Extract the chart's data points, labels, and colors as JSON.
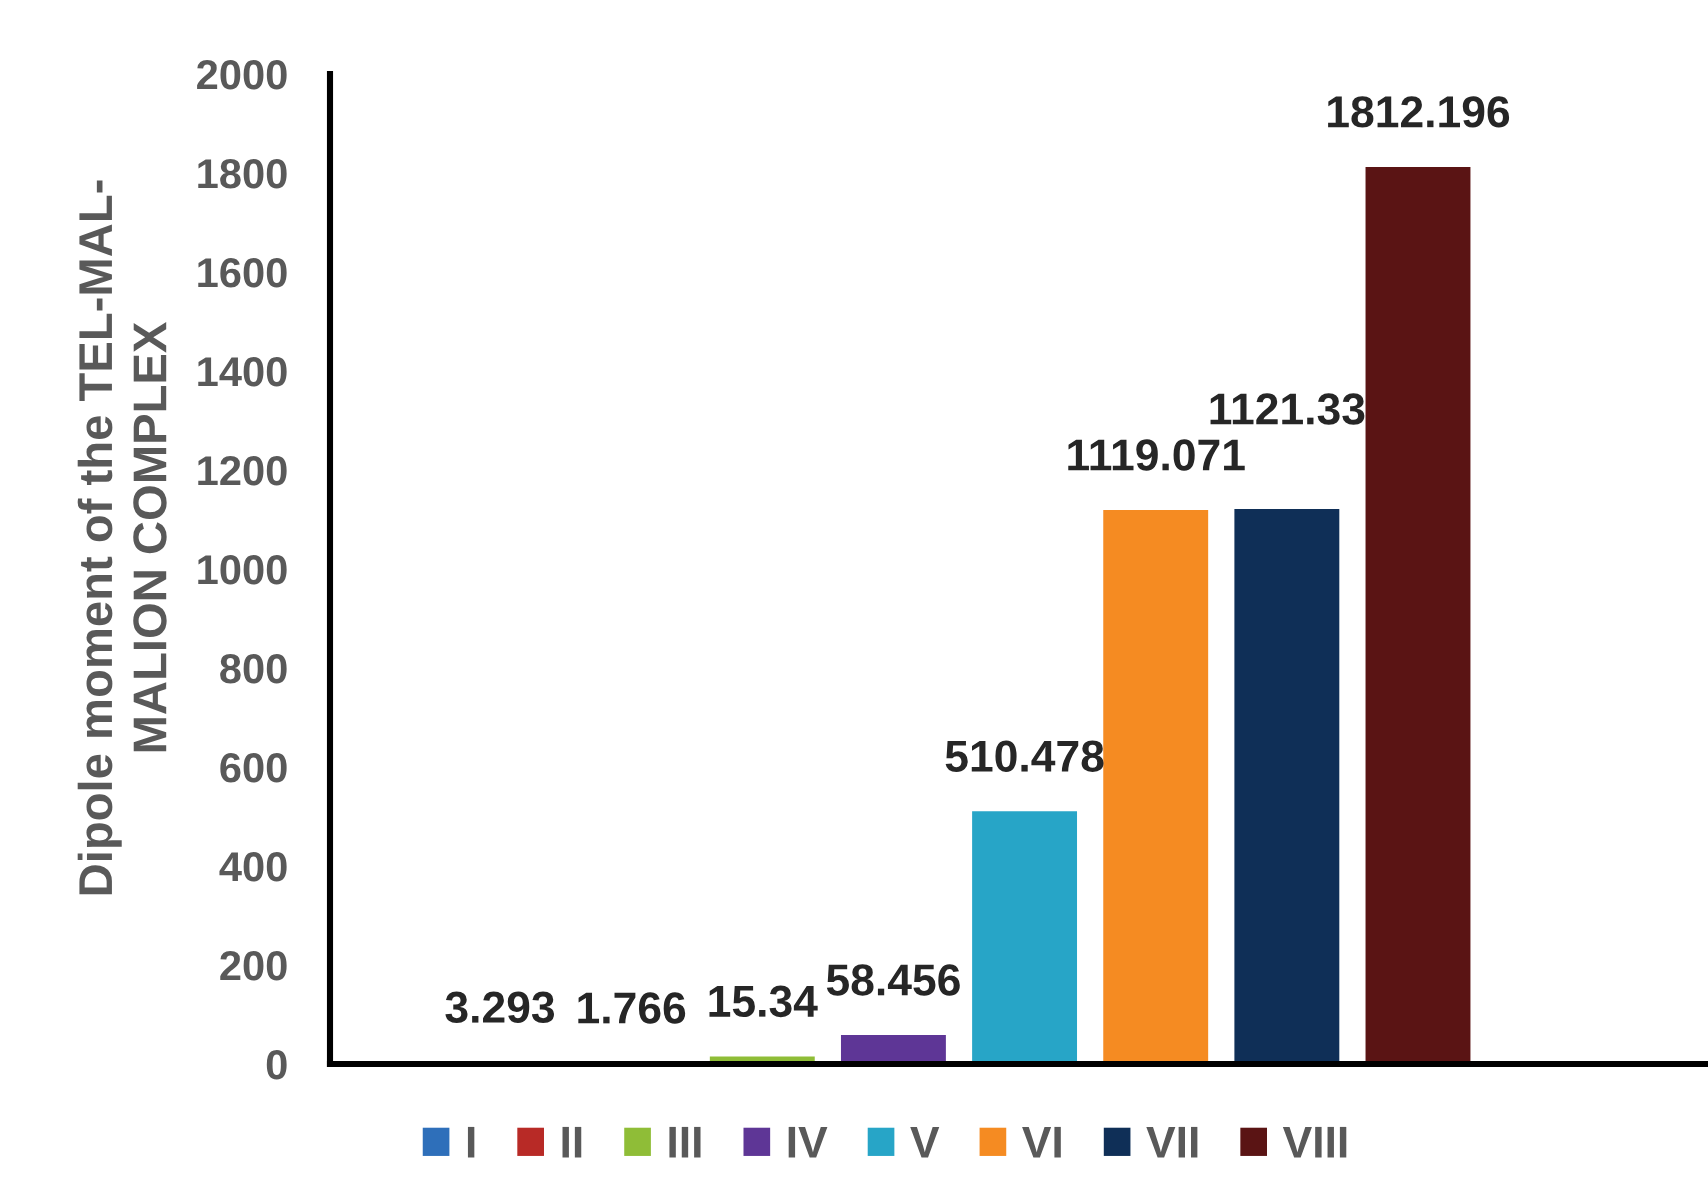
{
  "chart_data": {
    "type": "bar",
    "ylabel": "Dipole moment of the TEL-MAL-\nMALION COMPLEX",
    "categories": [
      null
    ],
    "series": [
      {
        "name": "I",
        "color": "#2e6fba",
        "values": [
          3.293
        ]
      },
      {
        "name": "II",
        "color": "#b82a26",
        "values": [
          1.766
        ]
      },
      {
        "name": "III",
        "color": "#8fbd37",
        "values": [
          15.34
        ]
      },
      {
        "name": "IV",
        "color": "#5e3696",
        "values": [
          58.456
        ]
      },
      {
        "name": "V",
        "color": "#27a5c7",
        "values": [
          510.478
        ]
      },
      {
        "name": "VI",
        "color": "#f58b22",
        "values": [
          1119.071
        ]
      },
      {
        "name": "VII",
        "color": "#0f2f57",
        "values": [
          1121.33
        ]
      },
      {
        "name": "VIII",
        "color": "#5a1414",
        "values": [
          1812.196
        ]
      }
    ],
    "ylim": [
      0,
      2000
    ],
    "yticks": [
      0,
      200,
      400,
      600,
      800,
      1000,
      1200,
      1400,
      1600,
      1800,
      2000
    ],
    "data_labels": true,
    "legend": "bottom",
    "grid": false
  }
}
